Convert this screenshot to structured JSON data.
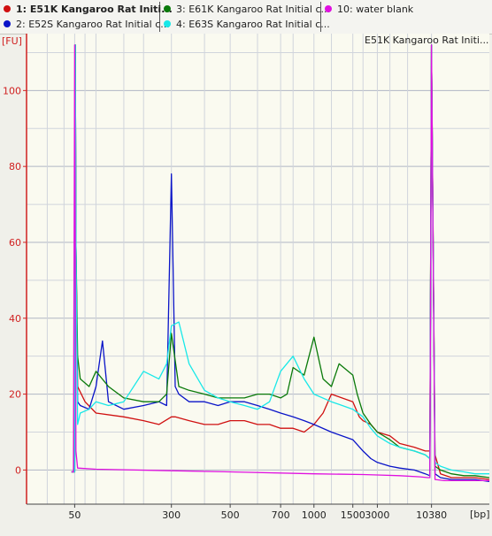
{
  "legend": {
    "items": [
      {
        "id": 1,
        "label": "1: E51K Kangaroo Rat Initi...",
        "color": "#d01010",
        "selected": true
      },
      {
        "id": 2,
        "label": "2: E52S Kangaroo Rat Initial c...",
        "color": "#0a14c8",
        "selected": false
      },
      {
        "id": 3,
        "label": "3: E61K Kangaroo Rat Initial c...",
        "color": "#0a7a0a",
        "selected": false
      },
      {
        "id": 4,
        "label": "4: E63S Kangaroo Rat Initial c...",
        "color": "#18e8e8",
        "selected": false
      },
      {
        "id": 10,
        "label": "10: water blank",
        "color": "#e010e0",
        "selected": false
      }
    ]
  },
  "chart_data": {
    "type": "line",
    "title": "E51K Kangaroo Rat Initi...",
    "ylabel": "[FU]",
    "xlabel": "[bp]",
    "ylim": [
      -9,
      115
    ],
    "yticks": [
      0,
      20,
      40,
      60,
      80,
      100
    ],
    "xticks": [
      "50",
      "300",
      "500",
      "700",
      "1000",
      "1500",
      "3000",
      "10380"
    ],
    "grid": true,
    "colors": {
      "plot_bg": "#fafaf0",
      "grid_major": "#b0b6c4",
      "grid_minor": "#d0d4dc",
      "axis": "#d02020"
    },
    "series": [
      {
        "name": "1: E51K Kangaroo Rat Initi...",
        "color": "#d01010",
        "x": [
          "45",
          "50",
          "51",
          "52",
          "55",
          "70",
          "100",
          "150",
          "200",
          "250",
          "300",
          "310",
          "350",
          "400",
          "450",
          "500",
          "550",
          "600",
          "650",
          "700",
          "800",
          "900",
          "1000",
          "1100",
          "1200",
          "1500",
          "1800",
          "2000",
          "2500",
          "3000",
          "4000",
          "5000",
          "7000",
          "9000",
          "10000",
          "10380",
          "10800",
          "11500",
          "13000",
          "15000",
          "17000",
          "20000"
        ],
        "values": [
          -0.5,
          -0.5,
          112,
          60,
          22,
          18,
          15,
          14,
          13,
          12,
          14,
          14,
          13,
          12,
          12,
          13,
          13,
          12,
          12,
          11,
          11,
          10,
          12,
          15,
          20,
          18,
          14,
          13,
          12,
          10,
          9,
          7,
          6,
          5,
          5,
          112,
          4,
          -1,
          -2,
          -2,
          -2,
          -2.5
        ]
      },
      {
        "name": "2: E52S Kangaroo Rat Initial c...",
        "color": "#0a14c8",
        "x": [
          "45",
          "50",
          "51",
          "52",
          "55",
          "60",
          "80",
          "100",
          "110",
          "120",
          "150",
          "200",
          "250",
          "280",
          "300",
          "310",
          "320",
          "350",
          "400",
          "450",
          "500",
          "550",
          "600",
          "650",
          "700",
          "800",
          "900",
          "1000",
          "1200",
          "1500",
          "2000",
          "2500",
          "3000",
          "4000",
          "5000",
          "7000",
          "9000",
          "10000",
          "10380",
          "10800",
          "11500",
          "13000",
          "15000",
          "17000",
          "20000"
        ],
        "values": [
          -0.5,
          -0.5,
          112,
          60,
          18,
          17,
          16,
          22,
          34,
          18,
          16,
          17,
          18,
          17,
          78,
          22,
          20,
          18,
          18,
          17,
          18,
          18,
          17,
          16,
          15,
          14,
          13,
          12,
          10,
          8,
          5,
          3,
          2,
          1,
          0.5,
          0,
          -1,
          -1.5,
          112,
          -1,
          -2,
          -2.5,
          -2.5,
          -2.5,
          -3
        ]
      },
      {
        "name": "3: E61K Kangaroo Rat Initial c...",
        "color": "#0a7a0a",
        "x": [
          "45",
          "50",
          "51",
          "52",
          "55",
          "60",
          "80",
          "100",
          "120",
          "150",
          "200",
          "250",
          "280",
          "300",
          "320",
          "350",
          "400",
          "450",
          "500",
          "550",
          "600",
          "650",
          "700",
          "750",
          "800",
          "900",
          "1000",
          "1100",
          "1200",
          "1300",
          "1500",
          "1700",
          "2000",
          "2500",
          "3000",
          "4000",
          "5000",
          "7000",
          "9000",
          "10000",
          "10380",
          "10800",
          "11500",
          "13000",
          "15000",
          "17000",
          "20000"
        ],
        "values": [
          -0.5,
          -0.5,
          112,
          60,
          30,
          24,
          22,
          26,
          22,
          19,
          18,
          18,
          20,
          36,
          22,
          21,
          20,
          19,
          19,
          19,
          20,
          20,
          19,
          20,
          27,
          25,
          35,
          24,
          22,
          28,
          25,
          20,
          15,
          12,
          10,
          8,
          6,
          5,
          4,
          3,
          112,
          1,
          0,
          -1,
          -1.5,
          -1.5,
          -2
        ]
      },
      {
        "name": "4: E63S Kangaroo Rat Initial c...",
        "color": "#18e8e8",
        "x": [
          "45",
          "50",
          "51",
          "52",
          "55",
          "60",
          "80",
          "100",
          "120",
          "150",
          "200",
          "250",
          "280",
          "300",
          "320",
          "350",
          "400",
          "450",
          "500",
          "550",
          "600",
          "650",
          "700",
          "800",
          "900",
          "1000",
          "1200",
          "1500",
          "2000",
          "2500",
          "3000",
          "4000",
          "5000",
          "7000",
          "9000",
          "10000",
          "10380",
          "10800",
          "11500",
          "13000",
          "15000",
          "17000",
          "20000"
        ],
        "values": [
          -0.5,
          -0.5,
          112,
          60,
          12,
          15,
          16,
          18,
          17,
          18,
          26,
          24,
          28,
          38,
          39,
          28,
          21,
          19,
          18,
          17,
          16,
          18,
          26,
          30,
          24,
          20,
          18,
          16,
          14,
          11,
          9,
          7,
          6,
          5,
          4,
          3,
          112,
          2,
          1,
          0,
          -0.5,
          -1,
          -1
        ]
      },
      {
        "name": "10: water blank",
        "color": "#e010e0",
        "x": [
          "45",
          "48",
          "49",
          "50",
          "51",
          "52",
          "55",
          "100",
          "300",
          "500",
          "1000",
          "2000",
          "3000",
          "5000",
          "8000",
          "9500",
          "10000",
          "10380",
          "10800",
          "12000",
          "15000",
          "20000"
        ],
        "values": [
          -0.5,
          -0.5,
          55,
          112,
          60,
          5,
          0.5,
          0.2,
          -0.2,
          -0.5,
          -1,
          -1.2,
          -1.3,
          -1.5,
          -1.8,
          -2,
          -2,
          112,
          -2.5,
          -2.8,
          -2.8,
          -2.8
        ]
      }
    ]
  }
}
